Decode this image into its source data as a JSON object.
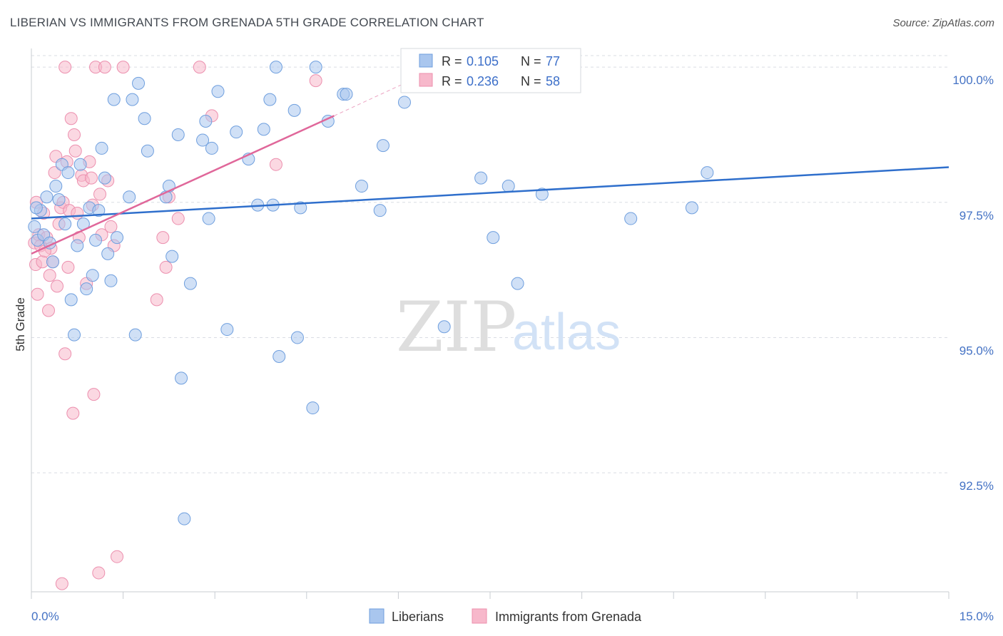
{
  "header": {
    "title": "LIBERIAN VS IMMIGRANTS FROM GRENADA 5TH GRADE CORRELATION CHART",
    "source": "Source: ZipAtlas.com"
  },
  "watermark": {
    "zip": "ZIP",
    "atlas": "atlas"
  },
  "legend": {
    "r_label": "R =",
    "n_label": "N =",
    "rows": [
      {
        "r": "0.105",
        "n": "77",
        "color": "#a9c6ee"
      },
      {
        "r": "0.236",
        "n": "58",
        "color": "#f7b8cb"
      }
    ]
  },
  "bottom_legend": [
    "Liberians",
    "Immigrants from Grenada"
  ],
  "colors": {
    "blue_fill": "#a9c6ee",
    "blue_stroke": "#6f9fde",
    "blue_line": "#2f6fcc",
    "pink_fill": "#f7b8cb",
    "pink_stroke": "#ec8fae",
    "pink_line": "#e0679a",
    "grid": "#d9dde3",
    "tick_label": "#4472c4"
  },
  "chart_data": {
    "type": "scatter",
    "title": "LIBERIAN VS IMMIGRANTS FROM GRENADA 5TH GRADE CORRELATION CHART",
    "xlabel": "",
    "ylabel": "5th Grade",
    "xlim": [
      0,
      15
    ],
    "ylim": [
      90.3,
      100.45
    ],
    "x_tick_labels": [
      "0.0%",
      "15.0%"
    ],
    "y_ticks": [
      92.5,
      95.0,
      97.5,
      100.0
    ],
    "y_tick_labels": [
      "92.5%",
      "95.0%",
      "97.5%",
      "100.0%"
    ],
    "grid": true,
    "legend_position": "top-center",
    "series": [
      {
        "name": "Liberians",
        "r": 0.105,
        "n": 77,
        "trend": {
          "x": [
            0,
            15
          ],
          "y": [
            97.2,
            98.15
          ]
        },
        "points": [
          [
            0.05,
            97.05
          ],
          [
            0.1,
            96.8
          ],
          [
            0.15,
            97.35
          ],
          [
            0.2,
            96.9
          ],
          [
            0.25,
            97.6
          ],
          [
            0.3,
            96.75
          ],
          [
            0.35,
            96.4
          ],
          [
            0.4,
            97.8
          ],
          [
            0.45,
            97.55
          ],
          [
            0.5,
            98.2
          ],
          [
            0.55,
            97.1
          ],
          [
            0.6,
            98.05
          ],
          [
            0.65,
            95.7
          ],
          [
            0.7,
            95.05
          ],
          [
            0.75,
            96.7
          ],
          [
            0.8,
            98.2
          ],
          [
            0.85,
            97.1
          ],
          [
            0.9,
            95.9
          ],
          [
            0.95,
            97.4
          ],
          [
            1.0,
            96.15
          ],
          [
            1.05,
            96.8
          ],
          [
            1.1,
            97.35
          ],
          [
            1.15,
            98.5
          ],
          [
            1.2,
            97.95
          ],
          [
            1.25,
            96.55
          ],
          [
            1.3,
            96.05
          ],
          [
            1.35,
            99.4
          ],
          [
            1.4,
            96.85
          ],
          [
            1.6,
            97.6
          ],
          [
            1.65,
            99.4
          ],
          [
            1.7,
            95.05
          ],
          [
            1.75,
            99.7
          ],
          [
            1.85,
            99.05
          ],
          [
            1.9,
            98.45
          ],
          [
            2.2,
            97.6
          ],
          [
            2.25,
            97.8
          ],
          [
            2.3,
            96.5
          ],
          [
            2.4,
            98.75
          ],
          [
            2.45,
            94.25
          ],
          [
            2.5,
            91.65
          ],
          [
            2.6,
            96.0
          ],
          [
            2.8,
            98.65
          ],
          [
            2.85,
            99.0
          ],
          [
            2.9,
            97.2
          ],
          [
            2.95,
            98.5
          ],
          [
            3.05,
            99.55
          ],
          [
            3.2,
            95.15
          ],
          [
            3.35,
            98.8
          ],
          [
            3.55,
            98.3
          ],
          [
            3.7,
            97.45
          ],
          [
            3.8,
            98.85
          ],
          [
            3.9,
            99.4
          ],
          [
            3.95,
            97.45
          ],
          [
            4.0,
            100.0
          ],
          [
            4.05,
            94.65
          ],
          [
            4.3,
            99.2
          ],
          [
            4.35,
            95.0
          ],
          [
            4.4,
            97.4
          ],
          [
            4.6,
            93.7
          ],
          [
            4.65,
            100.0
          ],
          [
            4.85,
            99.0
          ],
          [
            5.1,
            99.5
          ],
          [
            5.15,
            99.5
          ],
          [
            5.4,
            97.8
          ],
          [
            5.7,
            97.35
          ],
          [
            5.75,
            98.55
          ],
          [
            6.1,
            99.35
          ],
          [
            6.75,
            95.2
          ],
          [
            7.35,
            97.95
          ],
          [
            7.55,
            96.85
          ],
          [
            7.8,
            97.8
          ],
          [
            7.95,
            96.0
          ],
          [
            8.35,
            97.65
          ],
          [
            9.8,
            97.2
          ],
          [
            10.8,
            97.4
          ],
          [
            11.05,
            98.05
          ],
          [
            0.08,
            97.4
          ]
        ]
      },
      {
        "name": "Immigrants from Grenada",
        "r": 0.236,
        "n": 58,
        "trend": {
          "x": [
            0,
            4.95
          ],
          "y": [
            96.55,
            99.1
          ]
        },
        "trend_dashed_extension": {
          "x": [
            4.95,
            6.1
          ],
          "y": [
            99.1,
            99.7
          ]
        },
        "points": [
          [
            0.05,
            96.75
          ],
          [
            0.07,
            96.35
          ],
          [
            0.08,
            97.5
          ],
          [
            0.1,
            95.8
          ],
          [
            0.12,
            96.9
          ],
          [
            0.15,
            96.7
          ],
          [
            0.18,
            96.4
          ],
          [
            0.2,
            97.3
          ],
          [
            0.25,
            96.85
          ],
          [
            0.28,
            95.5
          ],
          [
            0.3,
            96.15
          ],
          [
            0.32,
            96.65
          ],
          [
            0.35,
            96.4
          ],
          [
            0.38,
            98.05
          ],
          [
            0.4,
            98.35
          ],
          [
            0.42,
            95.95
          ],
          [
            0.45,
            97.1
          ],
          [
            0.48,
            97.4
          ],
          [
            0.5,
            90.45
          ],
          [
            0.52,
            97.5
          ],
          [
            0.55,
            94.7
          ],
          [
            0.58,
            98.25
          ],
          [
            0.62,
            97.35
          ],
          [
            0.65,
            99.05
          ],
          [
            0.68,
            93.6
          ],
          [
            0.7,
            98.75
          ],
          [
            0.72,
            98.45
          ],
          [
            0.75,
            97.3
          ],
          [
            0.78,
            96.85
          ],
          [
            0.82,
            98.0
          ],
          [
            0.85,
            97.9
          ],
          [
            0.9,
            96.0
          ],
          [
            0.95,
            98.25
          ],
          [
            0.98,
            97.95
          ],
          [
            1.0,
            97.45
          ],
          [
            1.02,
            93.95
          ],
          [
            1.05,
            100.0
          ],
          [
            1.1,
            90.65
          ],
          [
            1.12,
            97.65
          ],
          [
            1.15,
            96.9
          ],
          [
            1.2,
            100.0
          ],
          [
            1.25,
            97.9
          ],
          [
            1.3,
            97.05
          ],
          [
            1.35,
            96.7
          ],
          [
            1.4,
            90.95
          ],
          [
            1.5,
            100.0
          ],
          [
            2.05,
            95.7
          ],
          [
            2.15,
            96.85
          ],
          [
            2.2,
            96.3
          ],
          [
            2.25,
            97.6
          ],
          [
            2.4,
            97.2
          ],
          [
            2.75,
            100.0
          ],
          [
            2.95,
            99.1
          ],
          [
            4.0,
            98.2
          ],
          [
            4.65,
            99.75
          ],
          [
            0.55,
            100.0
          ],
          [
            0.22,
            96.6
          ],
          [
            0.6,
            96.3
          ]
        ]
      }
    ]
  }
}
